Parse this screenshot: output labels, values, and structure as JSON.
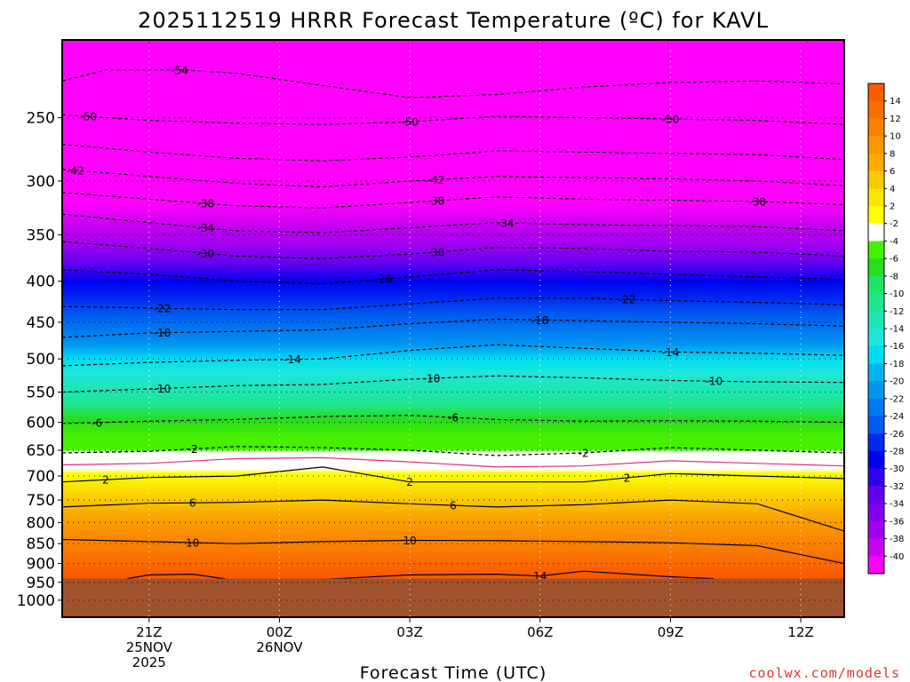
{
  "chart_data": {
    "type": "heatmap",
    "title": "2025112519 HRRR Forecast Temperature (ºC) for KAVL",
    "xlabel": "Forecast Time (UTC)",
    "ylabel": "",
    "credit": "coolwx.com/models",
    "y_scale": "log-pressure",
    "ylim": [
      1050,
      200
    ],
    "y_ticks": [
      1000,
      950,
      900,
      850,
      800,
      750,
      700,
      650,
      600,
      550,
      500,
      450,
      400,
      350,
      300,
      250
    ],
    "x_ticks": [
      {
        "hour": 2,
        "lines": [
          "21Z",
          "25NOV",
          "2025"
        ]
      },
      {
        "hour": 5,
        "lines": [
          "00Z",
          "26NOV"
        ]
      },
      {
        "hour": 8,
        "lines": [
          "03Z"
        ]
      },
      {
        "hour": 11,
        "lines": [
          "06Z"
        ]
      },
      {
        "hour": 14,
        "lines": [
          "09Z"
        ]
      },
      {
        "hour": 17,
        "lines": [
          "12Z"
        ]
      }
    ],
    "xlim": [
      0,
      18
    ],
    "grid": true,
    "ground_level_hpa": 940,
    "colorbar": {
      "labels": [
        "14",
        "12",
        "10",
        "8",
        "6",
        "4",
        "2",
        "-2",
        "-4",
        "-6",
        "-8",
        "-10",
        "-12",
        "-14",
        "-16",
        "-18",
        "-20",
        "-22",
        "-24",
        "-26",
        "-28",
        "-30",
        "-32",
        "-34",
        "-36",
        "-38",
        "-40"
      ],
      "colors": [
        "#fa5a00",
        "#fa6e00",
        "#fa8200",
        "#fa9600",
        "#faaa00",
        "#fac800",
        "#fae600",
        "#ffff00",
        "#ffffff",
        "#46f000",
        "#28dc1e",
        "#1ee664",
        "#1ee68c",
        "#1ee6b4",
        "#1ee6dc",
        "#00dcf0",
        "#00b4f0",
        "#0096f0",
        "#0078f0",
        "#005af0",
        "#0028f0",
        "#0000f0",
        "#3200f0",
        "#6400f0",
        "#8200f0",
        "#a000f0",
        "#c800f0",
        "#ff00ff"
      ]
    },
    "contours": [
      {
        "value": -54,
        "label": "-54",
        "label_hours": [
          2.7
        ],
        "points": [
          [
            0,
            225
          ],
          [
            1,
            218
          ],
          [
            2.7,
            218
          ],
          [
            4,
            220
          ],
          [
            6,
            228
          ],
          [
            8,
            236
          ],
          [
            10,
            234
          ],
          [
            12,
            229
          ],
          [
            14,
            226
          ],
          [
            16,
            225
          ],
          [
            18,
            227
          ]
        ]
      },
      {
        "value": -50,
        "label": "-50",
        "label_hours": [
          0.6,
          8,
          14
        ],
        "points": [
          [
            0,
            248
          ],
          [
            2,
            252
          ],
          [
            4,
            254
          ],
          [
            6,
            255
          ],
          [
            8,
            253
          ],
          [
            10,
            249
          ],
          [
            12,
            250
          ],
          [
            14,
            251
          ],
          [
            16,
            252
          ],
          [
            18,
            255
          ]
        ]
      },
      {
        "value": -46,
        "label": "",
        "label_hours": [],
        "points": [
          [
            0,
            270
          ],
          [
            2,
            276
          ],
          [
            4,
            281
          ],
          [
            6,
            283
          ],
          [
            8,
            280
          ],
          [
            10,
            275
          ],
          [
            12,
            276
          ],
          [
            14,
            277
          ],
          [
            16,
            278
          ],
          [
            18,
            282
          ]
        ]
      },
      {
        "value": -42,
        "label": "-42",
        "label_hours": [
          0.3,
          8.6
        ],
        "points": [
          [
            0,
            290
          ],
          [
            2,
            296
          ],
          [
            4,
            302
          ],
          [
            6,
            305
          ],
          [
            8,
            300
          ],
          [
            10,
            296
          ],
          [
            12,
            297
          ],
          [
            14,
            298
          ],
          [
            16,
            300
          ],
          [
            18,
            304
          ]
        ]
      },
      {
        "value": -38,
        "label": "-38",
        "label_hours": [
          3.3,
          8.6,
          16
        ],
        "points": [
          [
            0,
            310
          ],
          [
            2,
            316
          ],
          [
            4,
            322
          ],
          [
            6,
            324
          ],
          [
            8,
            319
          ],
          [
            10,
            314
          ],
          [
            12,
            316
          ],
          [
            14,
            317
          ],
          [
            16,
            318
          ],
          [
            18,
            321
          ]
        ]
      },
      {
        "value": -34,
        "label": "-34",
        "label_hours": [
          3.3,
          10.2
        ],
        "points": [
          [
            0,
            330
          ],
          [
            2,
            338
          ],
          [
            4,
            346
          ],
          [
            6,
            348
          ],
          [
            8,
            343
          ],
          [
            10,
            338
          ],
          [
            12,
            340
          ],
          [
            14,
            341
          ],
          [
            16,
            342
          ],
          [
            18,
            346
          ]
        ]
      },
      {
        "value": -30,
        "label": "-30",
        "label_hours": [
          3.3,
          8.6
        ],
        "points": [
          [
            0,
            357
          ],
          [
            2,
            364
          ],
          [
            4,
            372
          ],
          [
            6,
            375
          ],
          [
            8,
            370
          ],
          [
            10,
            363
          ],
          [
            12,
            364
          ],
          [
            14,
            367
          ],
          [
            16,
            368
          ],
          [
            18,
            372
          ]
        ]
      },
      {
        "value": -26,
        "label": "-26",
        "label_hours": [
          7.4
        ],
        "points": [
          [
            0,
            387
          ],
          [
            2,
            392
          ],
          [
            4,
            400
          ],
          [
            6,
            403
          ],
          [
            8,
            395
          ],
          [
            10,
            387
          ],
          [
            12,
            389
          ],
          [
            14,
            392
          ],
          [
            16,
            395
          ],
          [
            18,
            398
          ]
        ]
      },
      {
        "value": -22,
        "label": "-22",
        "label_hours": [
          2.3,
          13
        ],
        "points": [
          [
            0,
            430
          ],
          [
            2,
            432
          ],
          [
            4,
            434
          ],
          [
            6,
            434
          ],
          [
            8,
            427
          ],
          [
            10,
            420
          ],
          [
            12,
            420
          ],
          [
            14,
            423
          ],
          [
            16,
            425
          ],
          [
            18,
            428
          ]
        ]
      },
      {
        "value": -18,
        "label": "-18",
        "label_hours": [
          2.3,
          11
        ],
        "points": [
          [
            0,
            470
          ],
          [
            2,
            464
          ],
          [
            4,
            462
          ],
          [
            6,
            460
          ],
          [
            8,
            452
          ],
          [
            10,
            446
          ],
          [
            12,
            448
          ],
          [
            14,
            450
          ],
          [
            16,
            452
          ],
          [
            18,
            455
          ]
        ]
      },
      {
        "value": -14,
        "label": "-14",
        "label_hours": [
          5.3,
          14
        ],
        "points": [
          [
            0,
            510
          ],
          [
            2,
            505
          ],
          [
            4,
            502
          ],
          [
            6,
            500
          ],
          [
            8,
            488
          ],
          [
            10,
            480
          ],
          [
            12,
            485
          ],
          [
            14,
            490
          ],
          [
            16,
            492
          ],
          [
            18,
            495
          ]
        ]
      },
      {
        "value": -10,
        "label": "-10",
        "label_hours": [
          2.3,
          8.5,
          15
        ],
        "points": [
          [
            0,
            550
          ],
          [
            2,
            545
          ],
          [
            4,
            540
          ],
          [
            6,
            538
          ],
          [
            8,
            530
          ],
          [
            10,
            525
          ],
          [
            12,
            528
          ],
          [
            14,
            532
          ],
          [
            16,
            534
          ],
          [
            18,
            535
          ]
        ]
      },
      {
        "value": -6,
        "label": "-6",
        "label_hours": [
          0.8,
          9
        ],
        "points": [
          [
            0,
            602
          ],
          [
            2,
            598
          ],
          [
            4,
            595
          ],
          [
            6,
            590
          ],
          [
            8,
            588
          ],
          [
            10,
            595
          ],
          [
            12,
            598
          ],
          [
            14,
            597
          ],
          [
            16,
            598
          ],
          [
            18,
            600
          ]
        ]
      },
      {
        "value": -2,
        "label": "-2",
        "label_hours": [
          3,
          12
        ],
        "points": [
          [
            0,
            655
          ],
          [
            2,
            652
          ],
          [
            4,
            643
          ],
          [
            6,
            645
          ],
          [
            8,
            650
          ],
          [
            10,
            660
          ],
          [
            12,
            655
          ],
          [
            14,
            645
          ],
          [
            16,
            650
          ],
          [
            18,
            655
          ]
        ]
      },
      {
        "value": 0,
        "label": "",
        "label_hours": [],
        "points": [
          [
            0,
            678
          ],
          [
            2,
            675
          ],
          [
            4,
            666
          ],
          [
            6,
            664
          ],
          [
            8,
            672
          ],
          [
            10,
            682
          ],
          [
            12,
            680
          ],
          [
            14,
            670
          ],
          [
            16,
            675
          ],
          [
            18,
            680
          ]
        ]
      },
      {
        "value": 2,
        "label": "2",
        "label_hours": [
          1,
          8,
          13
        ],
        "points": [
          [
            0,
            712
          ],
          [
            2,
            703
          ],
          [
            4,
            700
          ],
          [
            6,
            682
          ],
          [
            8,
            712
          ],
          [
            10,
            712
          ],
          [
            12,
            712
          ],
          [
            14,
            695
          ],
          [
            16,
            700
          ],
          [
            18,
            705
          ]
        ]
      },
      {
        "value": 6,
        "label": "6",
        "label_hours": [
          3,
          9
        ],
        "points": [
          [
            0,
            765
          ],
          [
            2,
            757
          ],
          [
            4,
            755
          ],
          [
            6,
            750
          ],
          [
            8,
            758
          ],
          [
            10,
            765
          ],
          [
            12,
            760
          ],
          [
            14,
            750
          ],
          [
            16,
            758
          ],
          [
            18,
            820
          ]
        ]
      },
      {
        "value": 10,
        "label": "10",
        "label_hours": [
          3,
          8
        ],
        "points": [
          [
            0,
            840
          ],
          [
            2,
            845
          ],
          [
            4,
            850
          ],
          [
            6,
            845
          ],
          [
            8,
            842
          ],
          [
            10,
            843
          ],
          [
            12,
            845
          ],
          [
            14,
            848
          ],
          [
            16,
            855
          ],
          [
            18,
            900
          ]
        ]
      },
      {
        "value": 14,
        "label": "14",
        "label_hours": [
          11
        ],
        "points": [
          [
            1.5,
            940
          ],
          [
            2,
            930
          ],
          [
            3,
            928
          ],
          [
            4,
            945
          ],
          [
            6,
            942
          ],
          [
            8,
            930
          ],
          [
            10,
            928
          ],
          [
            11,
            933
          ],
          [
            12,
            920
          ],
          [
            14,
            935
          ],
          [
            15,
            940
          ]
        ]
      }
    ]
  }
}
